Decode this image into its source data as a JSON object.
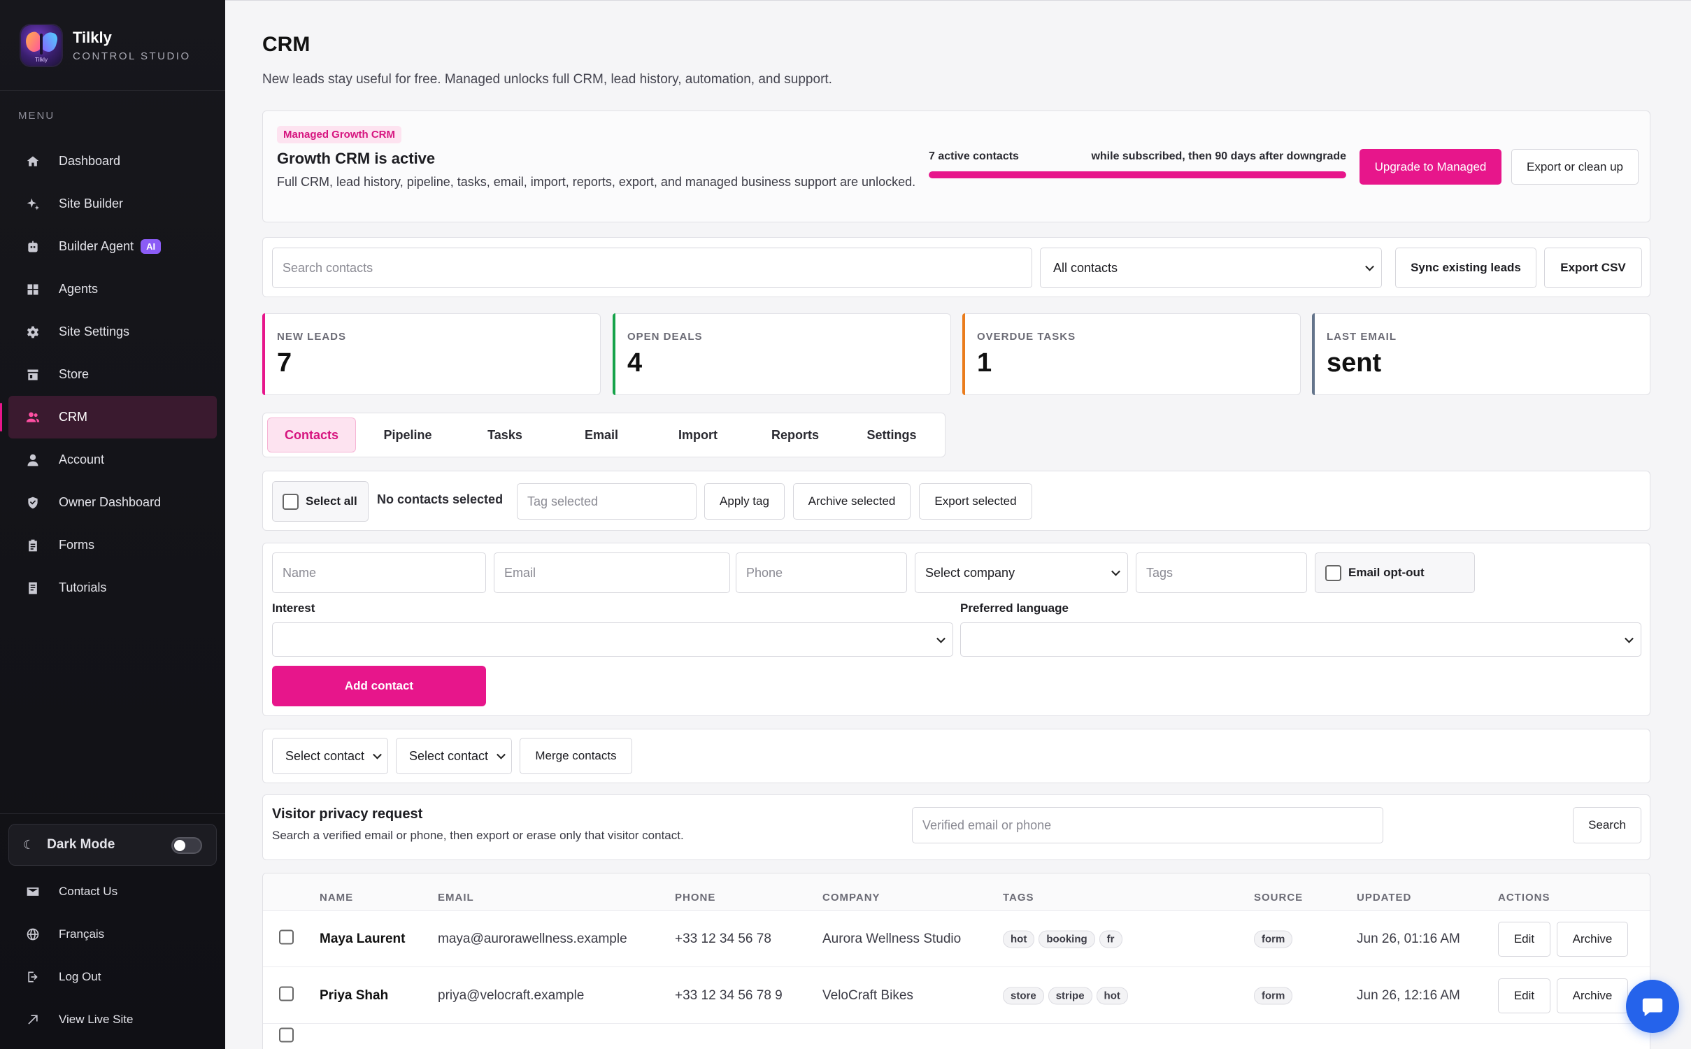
{
  "brand": {
    "name": "Tilkly",
    "subtitle": "CONTROL STUDIO",
    "logo_text": "Tilkly"
  },
  "sidebar": {
    "menu_label": "MENU",
    "items": [
      {
        "label": "Dashboard",
        "icon": "home-icon"
      },
      {
        "label": "Site Builder",
        "icon": "sparkle-icon"
      },
      {
        "label": "Builder Agent",
        "icon": "robot-icon",
        "badge": "AI"
      },
      {
        "label": "Agents",
        "icon": "grid-icon"
      },
      {
        "label": "Site Settings",
        "icon": "gear-icon"
      },
      {
        "label": "Store",
        "icon": "store-icon"
      },
      {
        "label": "CRM",
        "icon": "users-icon",
        "active": true
      },
      {
        "label": "Account",
        "icon": "user-icon"
      },
      {
        "label": "Owner Dashboard",
        "icon": "shield-icon"
      },
      {
        "label": "Forms",
        "icon": "clipboard-icon"
      },
      {
        "label": "Tutorials",
        "icon": "book-icon"
      }
    ],
    "dark_mode": {
      "label": "Dark Mode",
      "on": false
    },
    "bottom": [
      {
        "label": "Contact Us",
        "icon": "mail-icon"
      },
      {
        "label": "Français",
        "icon": "globe-icon"
      },
      {
        "label": "Log Out",
        "icon": "logout-icon"
      },
      {
        "label": "View Live Site",
        "icon": "external-link-icon"
      }
    ]
  },
  "page": {
    "title": "CRM",
    "subtitle": "New leads stay useful for free. Managed unlocks full CRM, lead history, automation, and support."
  },
  "plan": {
    "tag": "Managed Growth CRM",
    "title": "Growth CRM is active",
    "description": "Full CRM, lead history, pipeline, tasks, email, import, reports, export, and managed business support are unlocked.",
    "meter_left": "7 active contacts",
    "meter_right": "while subscribed, then 90 days after downgrade",
    "meter_fill_percent": 100,
    "upgrade_button": "Upgrade to Managed",
    "export_button": "Export or clean up"
  },
  "toolbar": {
    "search_placeholder": "Search contacts",
    "filter_value": "All contacts",
    "sync_button": "Sync existing leads",
    "export_button": "Export CSV"
  },
  "stats": [
    {
      "label": "NEW LEADS",
      "value": "7",
      "color": "#e7168b"
    },
    {
      "label": "OPEN DEALS",
      "value": "4",
      "color": "#16a34a"
    },
    {
      "label": "OVERDUE TASKS",
      "value": "1",
      "color": "#ea7c1c"
    },
    {
      "label": "LAST EMAIL",
      "value": "sent",
      "color": "#64748b"
    }
  ],
  "tabs": [
    "Contacts",
    "Pipeline",
    "Tasks",
    "Email",
    "Import",
    "Reports",
    "Settings"
  ],
  "bulk": {
    "select_all": "Select all",
    "status": "No contacts selected",
    "tag_placeholder": "Tag selected",
    "apply_tag": "Apply tag",
    "archive": "Archive selected",
    "export": "Export selected"
  },
  "add_form": {
    "name_placeholder": "Name",
    "email_placeholder": "Email",
    "phone_placeholder": "Phone",
    "company_select": "Select company",
    "tags_placeholder": "Tags",
    "opt_out_label": "Email opt-out",
    "interest_label": "Interest",
    "language_label": "Preferred language",
    "interest_value": "",
    "language_value": "",
    "submit": "Add contact"
  },
  "merge": {
    "select_a": "Select contact",
    "select_b": "Select contact",
    "button": "Merge contacts"
  },
  "privacy": {
    "title": "Visitor privacy request",
    "description": "Search a verified email or phone, then export or erase only that visitor contact.",
    "placeholder": "Verified email or phone",
    "button": "Search"
  },
  "table": {
    "headers": [
      "NAME",
      "EMAIL",
      "PHONE",
      "COMPANY",
      "TAGS",
      "SOURCE",
      "UPDATED",
      "ACTIONS"
    ],
    "rows": [
      {
        "name": "Maya Laurent",
        "email": "maya@aurorawellness.example",
        "phone": "+33 12 34 56 78",
        "company": "Aurora Wellness Studio",
        "tags": [
          "hot",
          "booking",
          "fr"
        ],
        "source": "form",
        "updated": "Jun 26, 01:16 AM",
        "edit": "Edit",
        "archive": "Archive"
      },
      {
        "name": "Priya Shah",
        "email": "priya@velocraft.example",
        "phone": "+33 12 34 56 78 9",
        "company": "VeloCraft Bikes",
        "tags": [
          "store",
          "stripe",
          "hot"
        ],
        "source": "form",
        "updated": "Jun 26, 12:16 AM",
        "edit": "Edit",
        "archive": "Archive"
      }
    ]
  },
  "chat_icon": "chat-bubble-icon"
}
